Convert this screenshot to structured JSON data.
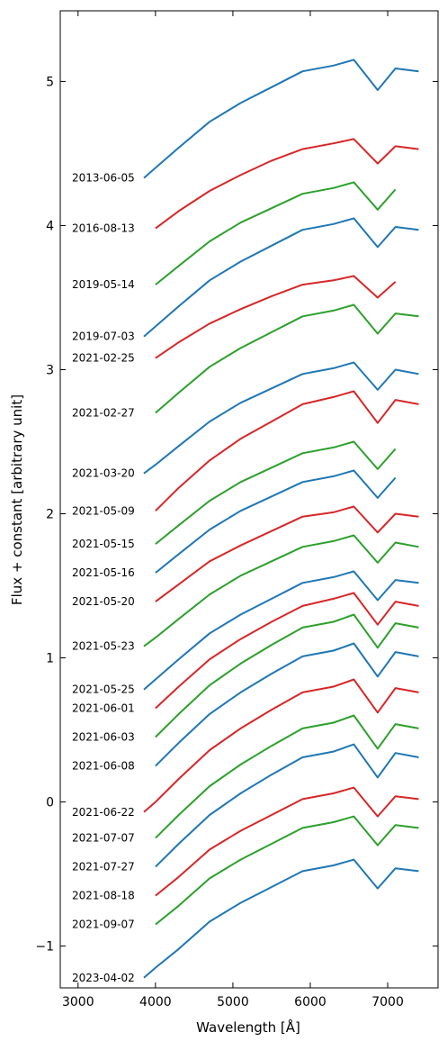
{
  "chart_data": {
    "type": "line",
    "xlabel": "Wavelength [Å]",
    "ylabel": "Flux + constant [arbitrary unit]",
    "x": [
      3850,
      4000,
      4300,
      4700,
      5100,
      5500,
      5900,
      6300,
      6563,
      6870,
      7100,
      7400
    ],
    "xlim": [
      2770,
      7650
    ],
    "xticks": [
      3000,
      4000,
      5000,
      6000,
      7000
    ],
    "ylim": [
      -1.29,
      5.49
    ],
    "yticks": [
      {
        "value": -1,
        "label": "−1"
      },
      0,
      1,
      2,
      3,
      4,
      5
    ],
    "series": [
      {
        "name": "2013-06-05",
        "color": "#1f77b4",
        "values": [
          4.33,
          4.4,
          4.54,
          4.72,
          4.85,
          4.96,
          5.07,
          5.11,
          5.15,
          4.94,
          5.09,
          5.07
        ]
      },
      {
        "name": "2016-08-13",
        "color": "#d62728",
        "values": [
          null,
          3.98,
          4.1,
          4.24,
          4.35,
          4.45,
          4.53,
          4.57,
          4.6,
          4.43,
          4.55,
          4.53
        ]
      },
      {
        "name": "2019-05-14",
        "color": "#2ca02c",
        "values": [
          null,
          3.59,
          3.72,
          3.89,
          4.02,
          4.12,
          4.22,
          4.26,
          4.3,
          4.11,
          4.25,
          null
        ]
      },
      {
        "name": "2019-07-03",
        "color": "#1f77b4",
        "values": [
          3.23,
          3.3,
          3.44,
          3.62,
          3.75,
          3.86,
          3.97,
          4.01,
          4.05,
          3.85,
          3.99,
          3.97
        ]
      },
      {
        "name": "2021-02-25",
        "color": "#d62728",
        "values": [
          null,
          3.08,
          3.19,
          3.32,
          3.42,
          3.51,
          3.59,
          3.62,
          3.65,
          3.5,
          3.61,
          null
        ]
      },
      {
        "name": "2021-02-27",
        "color": "#2ca02c",
        "values": [
          null,
          2.7,
          2.84,
          3.02,
          3.15,
          3.26,
          3.37,
          3.41,
          3.45,
          3.25,
          3.39,
          3.37
        ]
      },
      {
        "name": "2021-03-20",
        "color": "#1f77b4",
        "values": [
          2.28,
          2.34,
          2.47,
          2.64,
          2.77,
          2.87,
          2.97,
          3.01,
          3.05,
          2.86,
          3.0,
          2.97
        ]
      },
      {
        "name": "2021-05-09",
        "color": "#d62728",
        "values": [
          null,
          2.02,
          2.18,
          2.37,
          2.52,
          2.64,
          2.76,
          2.81,
          2.85,
          2.63,
          2.79,
          2.76
        ]
      },
      {
        "name": "2021-05-15",
        "color": "#2ca02c",
        "values": [
          null,
          1.79,
          1.92,
          2.09,
          2.22,
          2.32,
          2.42,
          2.46,
          2.5,
          2.31,
          2.45,
          null
        ]
      },
      {
        "name": "2021-05-16",
        "color": "#1f77b4",
        "values": [
          null,
          1.59,
          1.72,
          1.89,
          2.02,
          2.12,
          2.22,
          2.26,
          2.3,
          2.11,
          2.25,
          null
        ]
      },
      {
        "name": "2021-05-20",
        "color": "#d62728",
        "values": [
          null,
          1.39,
          1.51,
          1.67,
          1.78,
          1.88,
          1.98,
          2.01,
          2.05,
          1.87,
          2.0,
          1.98
        ]
      },
      {
        "name": "2021-05-23",
        "color": "#2ca02c",
        "values": [
          1.08,
          1.14,
          1.27,
          1.44,
          1.57,
          1.67,
          1.77,
          1.81,
          1.85,
          1.66,
          1.8,
          1.77
        ]
      },
      {
        "name": "2021-05-25",
        "color": "#1f77b4",
        "values": [
          0.78,
          0.85,
          0.99,
          1.17,
          1.3,
          1.41,
          1.52,
          1.56,
          1.6,
          1.4,
          1.54,
          1.52
        ]
      },
      {
        "name": "2021-06-01",
        "color": "#d62728",
        "values": [
          null,
          0.65,
          0.8,
          0.99,
          1.13,
          1.25,
          1.36,
          1.41,
          1.45,
          1.23,
          1.39,
          1.36
        ]
      },
      {
        "name": "2021-06-03",
        "color": "#2ca02c",
        "values": [
          null,
          0.45,
          0.61,
          0.81,
          0.96,
          1.09,
          1.21,
          1.25,
          1.3,
          1.07,
          1.24,
          1.21
        ]
      },
      {
        "name": "2021-06-08",
        "color": "#1f77b4",
        "values": [
          null,
          0.25,
          0.41,
          0.61,
          0.76,
          0.89,
          1.01,
          1.05,
          1.1,
          0.87,
          1.04,
          1.01
        ]
      },
      {
        "name": "2021-06-22",
        "color": "#d62728",
        "values": [
          -0.07,
          0.0,
          0.16,
          0.36,
          0.51,
          0.64,
          0.76,
          0.8,
          0.85,
          0.62,
          0.79,
          0.76
        ]
      },
      {
        "name": "2021-07-07",
        "color": "#2ca02c",
        "values": [
          null,
          -0.25,
          -0.09,
          0.11,
          0.26,
          0.39,
          0.51,
          0.55,
          0.6,
          0.37,
          0.54,
          0.51
        ]
      },
      {
        "name": "2021-07-27",
        "color": "#1f77b4",
        "values": [
          null,
          -0.45,
          -0.29,
          -0.09,
          0.06,
          0.19,
          0.31,
          0.35,
          0.4,
          0.17,
          0.34,
          0.31
        ]
      },
      {
        "name": "2021-08-18",
        "color": "#d62728",
        "values": [
          null,
          -0.65,
          -0.52,
          -0.33,
          -0.2,
          -0.09,
          0.02,
          0.06,
          0.1,
          -0.1,
          0.04,
          0.02
        ]
      },
      {
        "name": "2021-09-07",
        "color": "#2ca02c",
        "values": [
          null,
          -0.85,
          -0.72,
          -0.53,
          -0.4,
          -0.29,
          -0.18,
          -0.14,
          -0.1,
          -0.3,
          -0.16,
          -0.18
        ]
      },
      {
        "name": "2023-04-02",
        "color": "#1f77b4",
        "values": [
          -1.22,
          -1.15,
          -1.02,
          -0.83,
          -0.7,
          -0.59,
          -0.48,
          -0.44,
          -0.4,
          -0.6,
          -0.46,
          -0.48
        ]
      }
    ]
  }
}
